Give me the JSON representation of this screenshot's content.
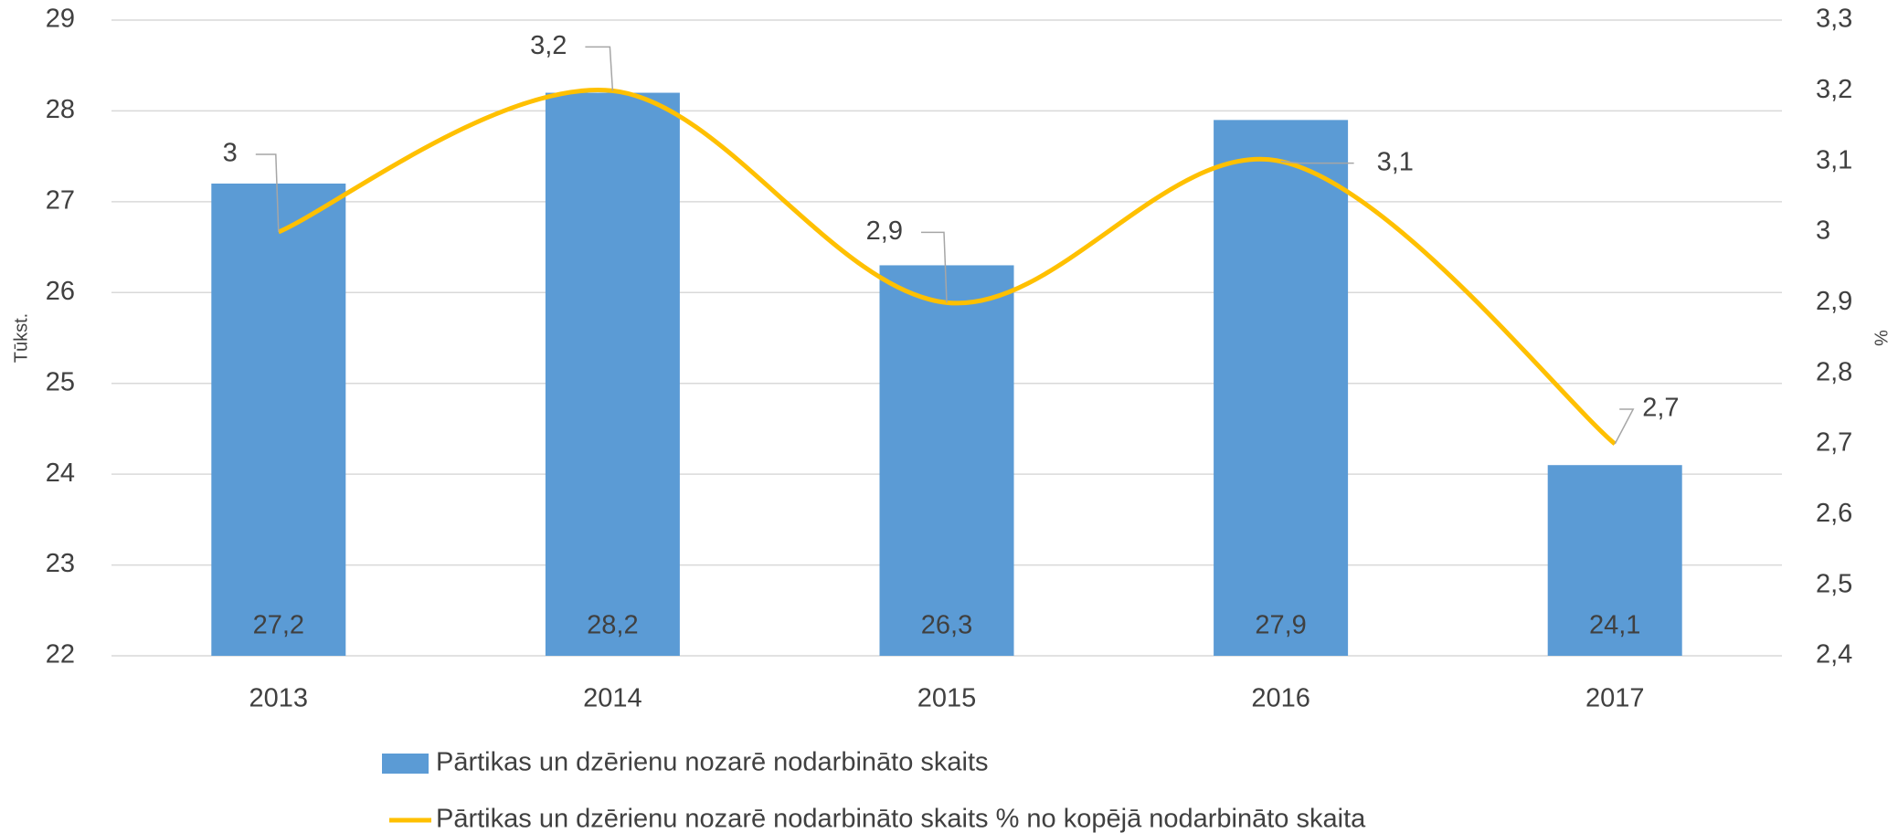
{
  "chart_data": {
    "type": "bar_line",
    "y_axis_label": "Tūkst.",
    "y2_axis_label": "%",
    "categories": [
      "2013",
      "2014",
      "2015",
      "2016",
      "2017"
    ],
    "series": [
      {
        "name": "Pārtikas un dzērienu nozarē nodarbināto skaits",
        "type": "bar",
        "color": "#5b9bd5",
        "values": [
          27.2,
          28.2,
          26.3,
          27.9,
          24.1
        ],
        "value_labels": [
          "27,2",
          "28,2",
          "26,3",
          "27,9",
          "24,1"
        ]
      },
      {
        "name": "Pārtikas un dzērienu nozarē nodarbināto skaits % no kopējā nodarbināto skaita",
        "type": "line",
        "color": "#ffc000",
        "axis": "y2",
        "smooth": true,
        "values": [
          3,
          3.2,
          2.9,
          3.1,
          2.7
        ],
        "value_labels": [
          "3",
          "3,2",
          "2,9",
          "3,1",
          "2,7"
        ]
      }
    ],
    "ylim": [
      22,
      29
    ],
    "yticks": [
      22,
      23,
      24,
      25,
      26,
      27,
      28,
      29
    ],
    "y2lim": [
      2.4,
      3.3
    ],
    "y2ticks": [
      {
        "value": 2.4,
        "label": "2,4"
      },
      {
        "value": 2.5,
        "label": "2,5"
      },
      {
        "value": 2.6,
        "label": "2,6"
      },
      {
        "value": 2.7,
        "label": "2,7"
      },
      {
        "value": 2.8,
        "label": "2,8"
      },
      {
        "value": 2.9,
        "label": "2,9"
      },
      3,
      {
        "value": 3.1,
        "label": "3,1"
      },
      {
        "value": 3.2,
        "label": "3,2"
      },
      {
        "value": 3.3,
        "label": "3,3"
      }
    ],
    "grid": true,
    "legend": "bottom"
  }
}
